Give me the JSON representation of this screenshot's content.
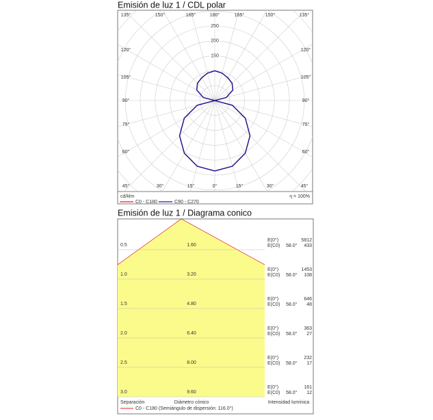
{
  "polar": {
    "title": "Emisión de luz 1 / CDL polar",
    "top_labels": [
      "135°",
      "150°",
      "165°",
      "180°",
      "165°",
      "150°",
      "135°"
    ],
    "left_labels": [
      "120°",
      "105°",
      "90°",
      "75°",
      "60°"
    ],
    "right_labels": [
      "120°",
      "105°",
      "90°",
      "75°",
      "60°"
    ],
    "bottom_labels": [
      "45°",
      "30°",
      "15°",
      "0°",
      "15°",
      "30°",
      "45°"
    ],
    "rlim": [
      0,
      250
    ],
    "rticks": [
      150,
      200,
      250
    ],
    "angles": [
      0,
      15,
      30,
      45,
      60,
      75,
      90,
      105,
      120,
      135,
      150,
      165,
      180
    ],
    "series": [
      {
        "name": "C0 - C180",
        "color": "#e02020",
        "values": [
          236,
          228,
          204,
          167,
          118,
          61,
          0,
          40,
          70,
          82,
          88,
          95,
          100
        ]
      },
      {
        "name": "C90 - C270",
        "color": "#1a1aa0",
        "values": [
          236,
          228,
          204,
          167,
          118,
          61,
          0,
          40,
          70,
          82,
          88,
          95,
          100
        ]
      }
    ],
    "unit": "cd/klm",
    "efficiency": "η = 100%"
  },
  "cone": {
    "title": "Emisión de luz 1 / Diagrama conico",
    "rows": [
      {
        "distance": "0.5",
        "diameter": "1.60",
        "e0_label": "E(0°)",
        "ec0_label": "E(C0)",
        "angle": "58.0°",
        "e0": "5812",
        "ec0": "433"
      },
      {
        "distance": "1.0",
        "diameter": "3.20",
        "e0_label": "E(0°)",
        "ec0_label": "E(C0)",
        "angle": "58.0°",
        "e0": "1453",
        "ec0": "108"
      },
      {
        "distance": "1.5",
        "diameter": "4.80",
        "e0_label": "E(0°)",
        "ec0_label": "E(C0)",
        "angle": "58.0°",
        "e0": "646",
        "ec0": "48"
      },
      {
        "distance": "2.0",
        "diameter": "6.40",
        "e0_label": "E(0°)",
        "ec0_label": "E(C0)",
        "angle": "58.0°",
        "e0": "363",
        "ec0": "27"
      },
      {
        "distance": "2.5",
        "diameter": "8.00",
        "e0_label": "E(0°)",
        "ec0_label": "E(C0)",
        "angle": "58.0°",
        "e0": "232",
        "ec0": "17"
      },
      {
        "distance": "3.0",
        "diameter": "9.60",
        "e0_label": "E(0°)",
        "ec0_label": "E(C0)",
        "angle": "58.0°",
        "e0": "161",
        "ec0": "12"
      }
    ],
    "col_separation": "Separación",
    "col_diameter": "Diámetro cónico",
    "col_intensity": "Intensidad lumínica",
    "legend": "C0 - C180 (Semiángulo de dispersión: 116.0°)"
  }
}
